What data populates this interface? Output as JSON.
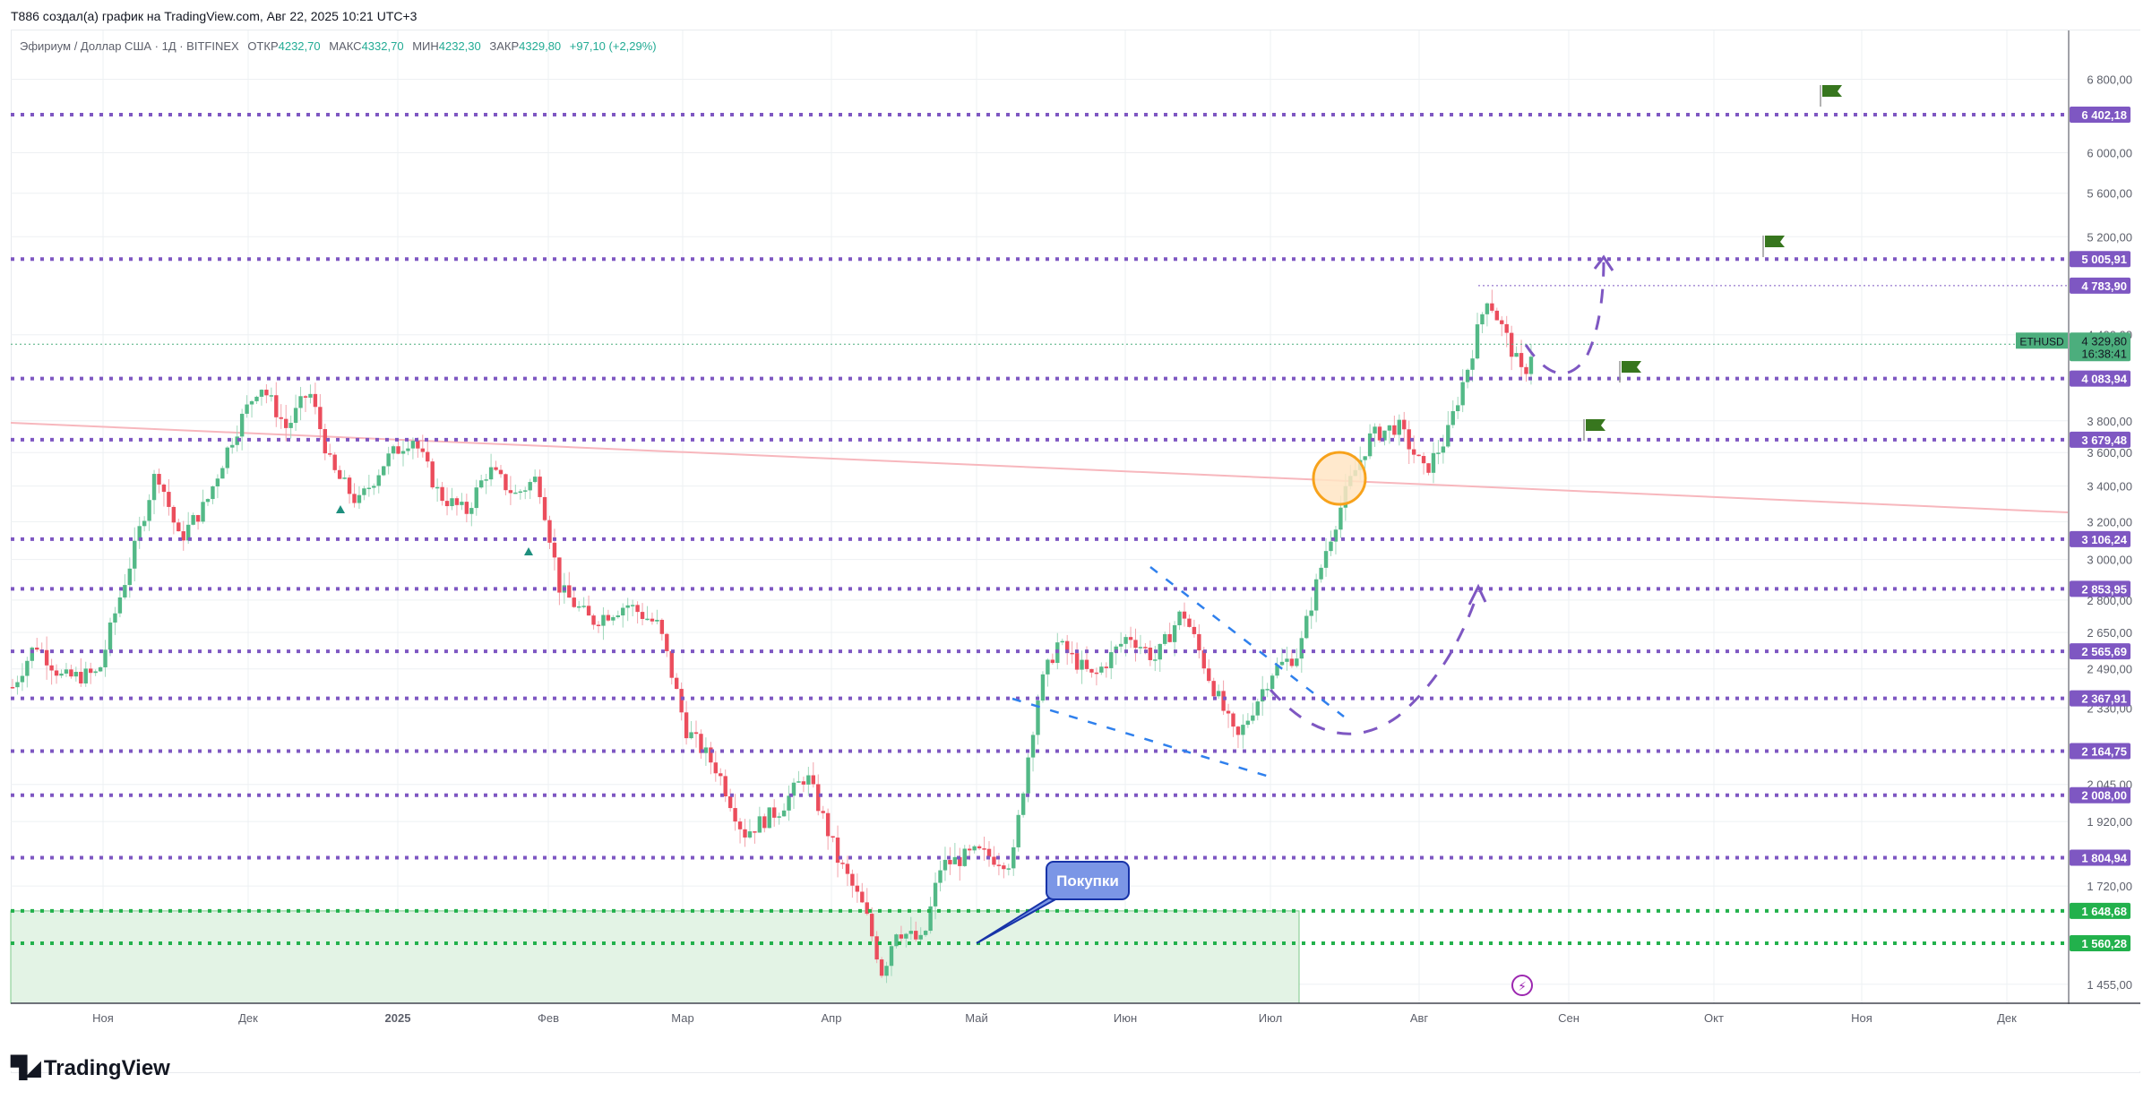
{
  "header": {
    "caption": "T886 создал(а) график на TradingView.com, Авг 22, 2025 10:21 UTC+3"
  },
  "legend": {
    "symbol": "Эфириум / Доллар США · 1Д · BITFINEX",
    "open_label": "ОТКР",
    "open": "4232,70",
    "high_label": "МАКС",
    "high": "4332,70",
    "low_label": "МИН",
    "low": "4232,30",
    "close_label": "ЗАКР",
    "close": "4329,80",
    "change": "+97,10 (+2,29%)"
  },
  "price_axis": {
    "currency": "USD",
    "ticks": [
      "6 800,00",
      "6 000,00",
      "5 600,00",
      "5 200,00",
      "4 400,00",
      "3 800,00",
      "3 600,00",
      "3 400,00",
      "3 200,00",
      "3 000,00",
      "2 800,00",
      "2 650,00",
      "2 490,00",
      "2 330,00",
      "2 045,00",
      "1 920,00",
      "1 720,00",
      "1 455,00"
    ],
    "current_price": {
      "symbol": "ETHUSD",
      "value": "4 329,80",
      "countdown": "16:38:41",
      "color": "#4cae7d"
    }
  },
  "time_axis": {
    "labels": [
      "Ноя",
      "Дек",
      "2025",
      "Фев",
      "Мар",
      "Апр",
      "Май",
      "Июн",
      "Июл",
      "Авг",
      "Сен",
      "Окт",
      "Ноя",
      "Дек"
    ]
  },
  "levels": [
    {
      "value": "6 402,18",
      "color": "#7e57c2"
    },
    {
      "value": "5 005,91",
      "color": "#7e57c2"
    },
    {
      "value": "4 783,90",
      "color": "#7e57c2"
    },
    {
      "value": "4 083,94",
      "color": "#7e57c2"
    },
    {
      "value": "3 679,48",
      "color": "#7e57c2"
    },
    {
      "value": "3 106,24",
      "color": "#7e57c2"
    },
    {
      "value": "2 853,95",
      "color": "#7e57c2"
    },
    {
      "value": "2 565,69",
      "color": "#7e57c2"
    },
    {
      "value": "2 367,91",
      "color": "#7e57c2"
    },
    {
      "value": "2 164,75",
      "color": "#7e57c2"
    },
    {
      "value": "2 008,00",
      "color": "#7e57c2"
    },
    {
      "value": "1 804,94",
      "color": "#7e57c2"
    },
    {
      "value": "1 648,68",
      "color": "#22b14c"
    },
    {
      "value": "1 560,28",
      "color": "#22b14c"
    }
  ],
  "annotations": {
    "callout_text": "Покупки",
    "buy_zone": {
      "from": "1 560,28",
      "to": "1 648,68"
    }
  },
  "branding": {
    "logo_text": "TradingView"
  },
  "chart_data": {
    "type": "candlestick",
    "title": "Эфириум / Доллар США · 1Д · BITFINEX",
    "xlabel": "",
    "ylabel": "USD",
    "y_scale": "log",
    "ylim": [
      1400,
      7000
    ],
    "x_ticks": [
      "Ноя",
      "Дек",
      "2025",
      "Фев",
      "Мар",
      "Апр",
      "Май",
      "Июн",
      "Июл",
      "Авг",
      "Сен",
      "Окт",
      "Ноя",
      "Дек"
    ],
    "last": {
      "open": 4232.7,
      "high": 4332.7,
      "low": 4232.3,
      "close": 4329.8,
      "change": 97.1,
      "change_pct": 2.29
    },
    "horizontal_levels": [
      6402.18,
      5005.91,
      4783.9,
      4083.94,
      3679.48,
      3106.24,
      2853.95,
      2565.69,
      2367.91,
      2164.75,
      2008.0,
      1804.94,
      1648.68,
      1560.28
    ],
    "monthly_approx_close": [
      {
        "month": "Ноя 2024",
        "close": 3700
      },
      {
        "month": "Дек 2024",
        "close": 3330
      },
      {
        "month": "Янв 2025",
        "close": 3300
      },
      {
        "month": "Фев 2025",
        "close": 2230
      },
      {
        "month": "Мар 2025",
        "close": 1820
      },
      {
        "month": "Апр 2025",
        "close": 1790
      },
      {
        "month": "Май 2025",
        "close": 2530
      },
      {
        "month": "Июн 2025",
        "close": 2490
      },
      {
        "month": "Июл 2025",
        "close": 3700
      },
      {
        "month": "Авг 2025 (to 22nd)",
        "close": 4329.8
      }
    ],
    "notable_points": [
      {
        "label": "Dec 2024 high",
        "value": 4100
      },
      {
        "label": "Apr 2025 low",
        "value": 1385
      },
      {
        "label": "Aug 2025 high",
        "value": 4783.9
      }
    ],
    "drawings": [
      "descending trendline (pink)",
      "falling wedge (blue dashed)",
      "projected path arrows (purple dashed)",
      "buy zone rectangle 1560–1649",
      "target flags"
    ]
  }
}
